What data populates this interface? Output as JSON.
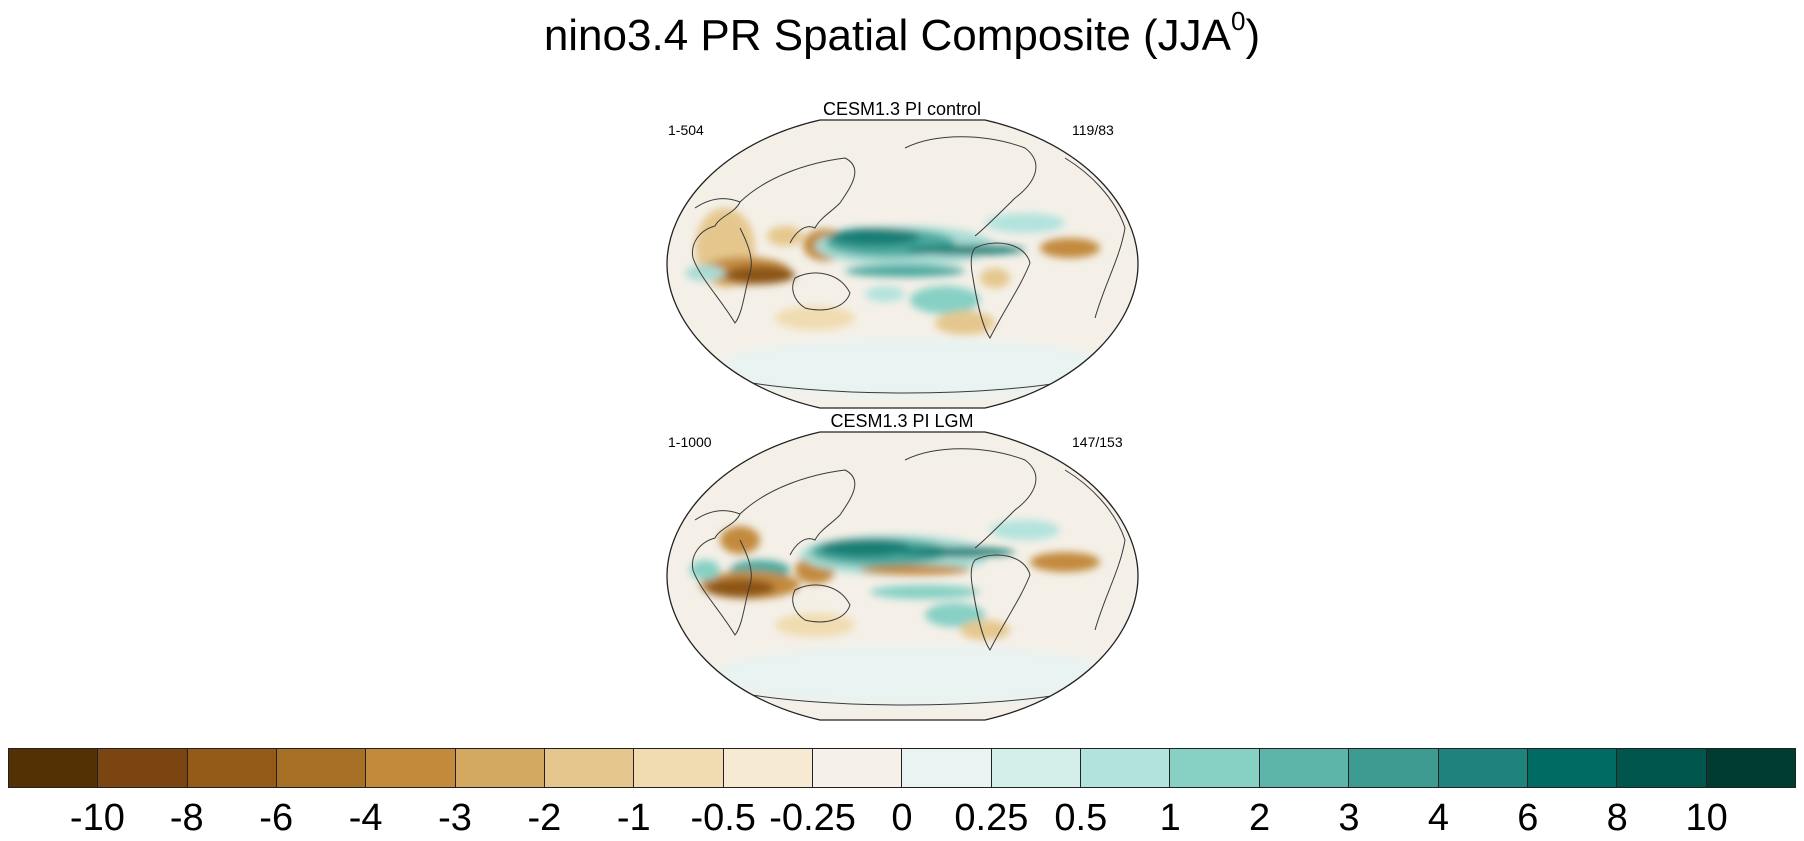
{
  "figure": {
    "title": "nino3.4 PR Spatial Composite (JJA",
    "title_sup": "0",
    "title_close": ")"
  },
  "panels": [
    {
      "title": "CESM1.3 PI control",
      "left_label": "1-504",
      "right_label": "119/83"
    },
    {
      "title": "CESM1.3 PI LGM",
      "left_label": "1-1000",
      "right_label": "147/153"
    }
  ],
  "colorbar": {
    "colors": [
      "#543005",
      "#7a4511",
      "#945a18",
      "#a86f26",
      "#c38a3c",
      "#d3a860",
      "#e5c78d",
      "#f0dcb0",
      "#f6ead2",
      "#f5f1ea",
      "#e9f3f1",
      "#d4eeea",
      "#b2e3dd",
      "#86d0c4",
      "#5db5aa",
      "#3d9b92",
      "#1f837b",
      "#006b62",
      "#00564c",
      "#003c30"
    ],
    "labels": [
      "-10",
      "-8",
      "-6",
      "-4",
      "-3",
      "-2",
      "-1",
      "-0.5",
      "-0.25",
      "0",
      "0.25",
      "0.5",
      "1",
      "2",
      "3",
      "4",
      "6",
      "8",
      "10"
    ]
  },
  "colors": {
    "brown_strong": "#8c5412",
    "brown_mid": "#c38a3c",
    "brown_light": "#e8cd98",
    "teal_strong": "#137e75",
    "teal_mid": "#4aa99f",
    "teal_light": "#a9dcd5",
    "neutral": "#f4f0e8",
    "land_line": "#3a3a3a"
  }
}
